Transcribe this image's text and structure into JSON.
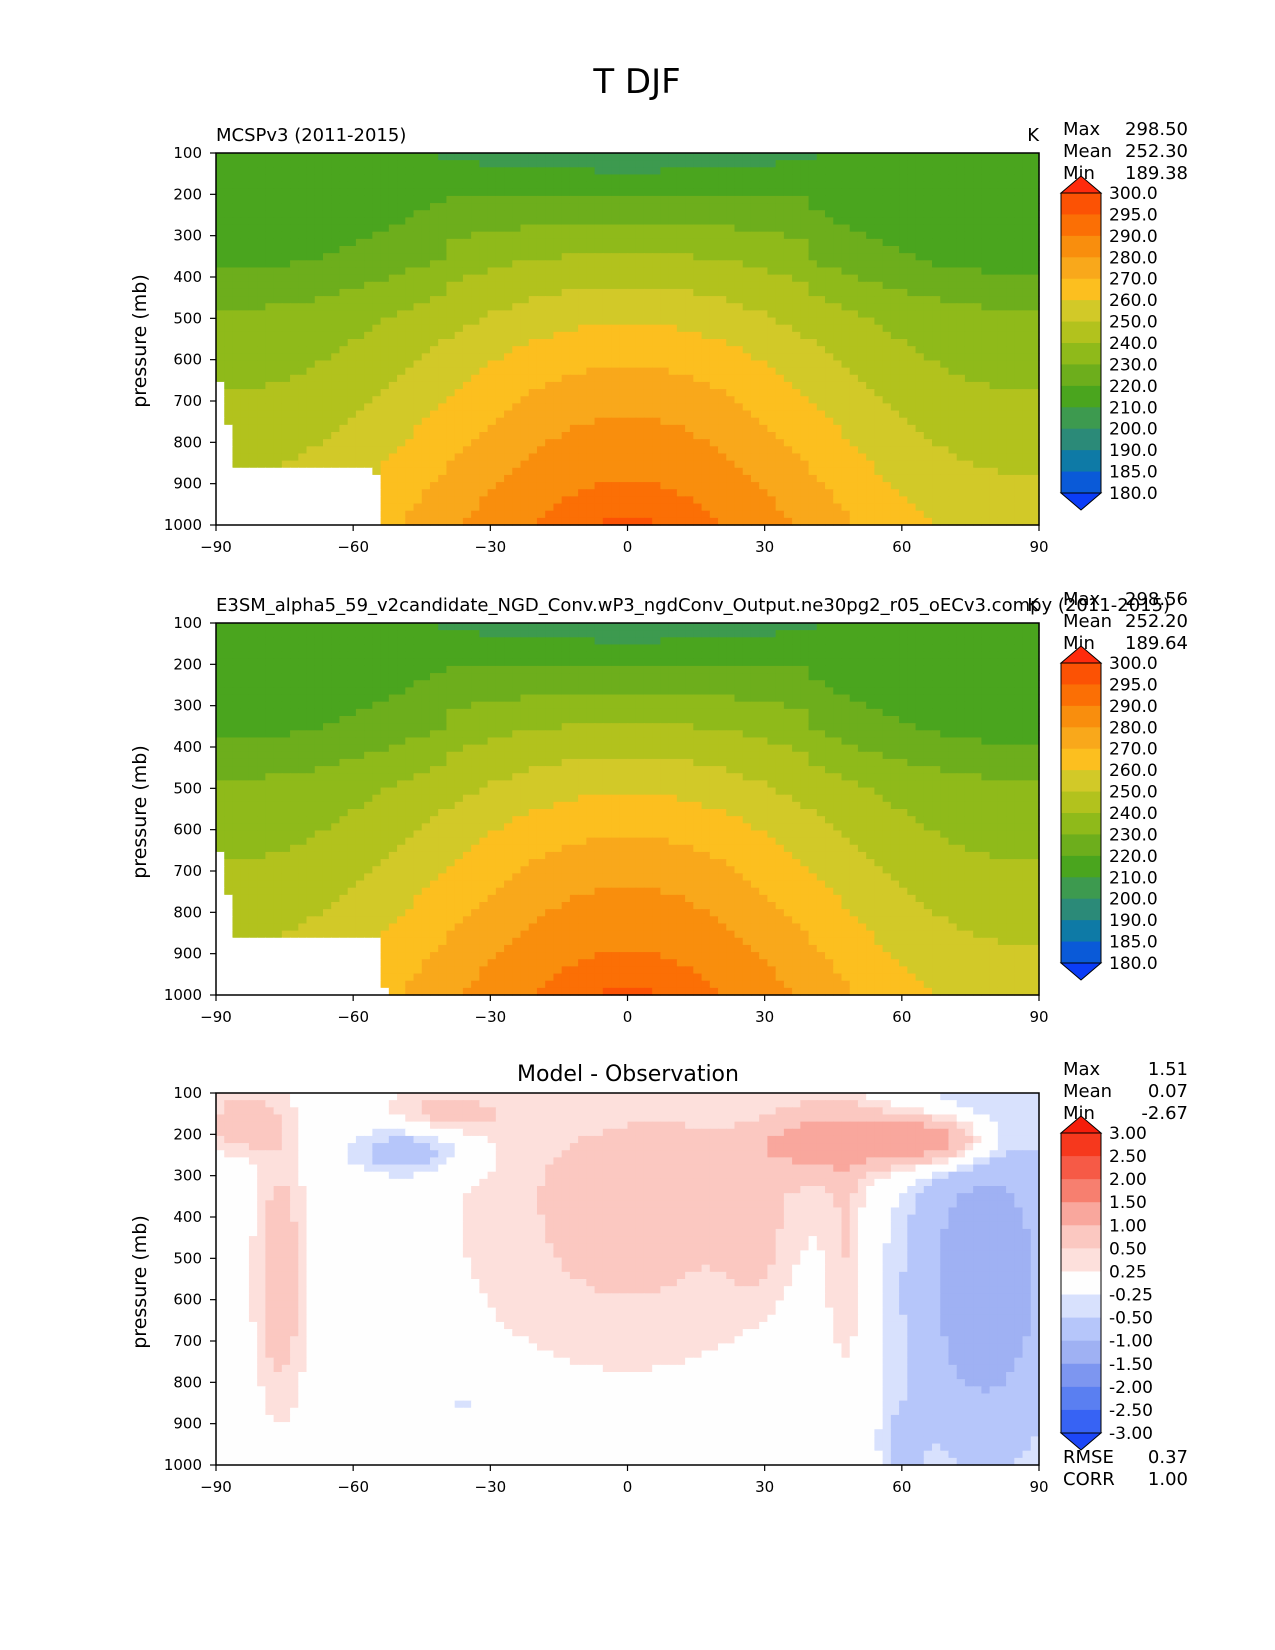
{
  "figure": {
    "title": "T DJF"
  },
  "colors": {
    "abs_levels": [
      180,
      185,
      190,
      200,
      210,
      220,
      230,
      240,
      250,
      260,
      270,
      280,
      290,
      295,
      300
    ],
    "abs_fill": [
      "#0b3df7",
      "#0a5ad8",
      "#0e7aa6",
      "#2b8a78",
      "#3d9a4f",
      "#4aa51e",
      "#6dae1c",
      "#8fba1a",
      "#b2c21d",
      "#d2c928",
      "#fcbf1f",
      "#f9a81b",
      "#f98e0d",
      "#fb6f05",
      "#fc5204",
      "#fc3b12"
    ],
    "abs_neg_arrow": "#0b3df7",
    "abs_pos_arrow": "#ff2b0d",
    "diff_levels": [
      -3,
      -2.5,
      -2,
      -1.5,
      -1,
      -0.5,
      -0.25,
      0.25,
      0.5,
      1,
      1.5,
      2,
      2.5,
      3
    ],
    "diff_fill": [
      "#1d47f7",
      "#3763f4",
      "#5a7ff1",
      "#7d96f0",
      "#9fb1f3",
      "#b6c6fa",
      "#d8e1fd",
      "#fefefe",
      "#fde0dc",
      "#fbc8c1",
      "#f9a79d",
      "#f77f6f",
      "#f65a46",
      "#f6381d",
      "#f51d0b"
    ],
    "missing": "#ffffff"
  },
  "chart_data": [
    {
      "type": "heatmap",
      "panel": "test",
      "title_left": "MCSPv3 (2011-2015)",
      "title_right": "K",
      "ylabel": "pressure (mb)",
      "xlabel": "",
      "x_ticks": [
        "−90",
        "−60",
        "−30",
        "0",
        "30",
        "60",
        "90"
      ],
      "y_ticks": [
        "100",
        "200",
        "300",
        "400",
        "500",
        "600",
        "700",
        "800",
        "900",
        "1000"
      ],
      "xlim": [
        -90,
        90
      ],
      "ylim": [
        1000,
        100
      ],
      "stats": {
        "max_label": "Max",
        "max": "298.50",
        "mean_label": "Mean",
        "mean": "252.30",
        "min_label": "Min",
        "min": "189.38"
      },
      "colorbar_labels": [
        "300.0",
        "295.0",
        "290.0",
        "280.0",
        "270.0",
        "260.0",
        "250.0",
        "240.0",
        "230.0",
        "220.0",
        "210.0",
        "200.0",
        "190.0",
        "185.0",
        "180.0"
      ],
      "field": "absolute",
      "missing_region": [
        [
          -90,
          1000
        ],
        [
          -90,
          650
        ],
        [
          -87.5,
          650
        ],
        [
          -87.5,
          750
        ],
        [
          -86,
          750
        ],
        [
          -86,
          800
        ],
        [
          -85.5,
          870
        ],
        [
          -55,
          870
        ],
        [
          -54,
          1000
        ]
      ]
    },
    {
      "type": "heatmap",
      "panel": "reference",
      "title_left": "E3SM_alpha5_59_v2candidate_NGD_Conv.wP3_ngdConv_Output.ne30pg2_r05_oECv3.compy (2011-2015)",
      "title_right": "K",
      "ylabel": "pressure (mb)",
      "xlabel": "",
      "x_ticks": [
        "−90",
        "−60",
        "−30",
        "0",
        "30",
        "60",
        "90"
      ],
      "y_ticks": [
        "100",
        "200",
        "300",
        "400",
        "500",
        "600",
        "700",
        "800",
        "900",
        "1000"
      ],
      "xlim": [
        -90,
        90
      ],
      "ylim": [
        1000,
        100
      ],
      "stats": {
        "max_label": "Max",
        "max": "298.56",
        "mean_label": "Mean",
        "mean": "252.20",
        "min_label": "Min",
        "min": "189.64"
      },
      "colorbar_labels": [
        "300.0",
        "295.0",
        "290.0",
        "280.0",
        "270.0",
        "260.0",
        "250.0",
        "240.0",
        "230.0",
        "220.0",
        "210.0",
        "200.0",
        "190.0",
        "185.0",
        "180.0"
      ],
      "field": "absolute",
      "missing_region": [
        [
          -90,
          1000
        ],
        [
          -90,
          650
        ],
        [
          -87.5,
          650
        ],
        [
          -87.5,
          750
        ],
        [
          -86,
          750
        ],
        [
          -86,
          800
        ],
        [
          -85.5,
          870
        ],
        [
          -54,
          870
        ],
        [
          -53,
          1000
        ]
      ]
    },
    {
      "type": "heatmap",
      "panel": "difference",
      "title_center": "Model - Observation",
      "ylabel": "pressure (mb)",
      "xlabel": "",
      "x_ticks": [
        "−90",
        "−60",
        "−30",
        "0",
        "30",
        "60",
        "90"
      ],
      "y_ticks": [
        "100",
        "200",
        "300",
        "400",
        "500",
        "600",
        "700",
        "800",
        "900",
        "1000"
      ],
      "xlim": [
        -90,
        90
      ],
      "ylim": [
        1000,
        100
      ],
      "stats": {
        "max_label": "Max",
        "max": "1.51",
        "mean_label": "Mean",
        "mean": "0.07",
        "min_label": "Min",
        "min": "-2.67"
      },
      "colorbar_labels": [
        "3.00",
        "2.50",
        "2.00",
        "1.50",
        "1.00",
        "0.50",
        "0.25",
        "-0.25",
        "-0.50",
        "-1.00",
        "-1.50",
        "-2.00",
        "-2.50",
        "-3.00"
      ],
      "extra_stats": {
        "rmse_label": "RMSE",
        "rmse": "0.37",
        "corr_label": "CORR",
        "corr": "1.00"
      },
      "field": "difference"
    }
  ]
}
